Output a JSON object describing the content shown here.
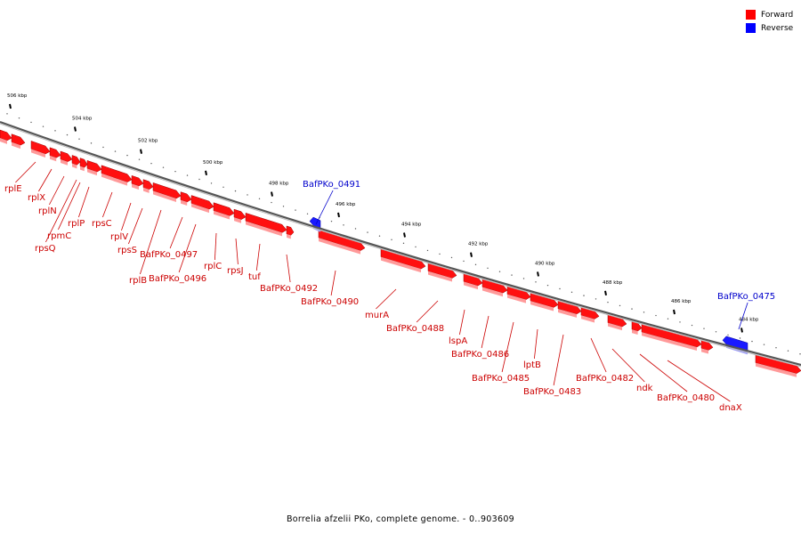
{
  "legend": {
    "forward_label": "Forward",
    "reverse_label": "Reverse",
    "forward_color": "#ff0000",
    "reverse_color": "#0000ff"
  },
  "caption": "Borrelia afzelii PKo, complete genome. - 0..903609",
  "label_colors": {
    "forward": "#cc0000",
    "reverse": "#0000cc"
  },
  "ticks": [
    "506 kbp",
    "504 kbp",
    "502 kbp",
    "500 kbp",
    "498 kbp",
    "496 kbp",
    "494 kbp",
    "492 kbp",
    "490 kbp",
    "488 kbp",
    "486 kbp",
    "484 kbp"
  ],
  "genes": [
    {
      "label": "rplE",
      "strand": "forward"
    },
    {
      "label": "rplX",
      "strand": "forward"
    },
    {
      "label": "rplN",
      "strand": "forward"
    },
    {
      "label": "rpmC",
      "strand": "forward"
    },
    {
      "label": "rpsQ",
      "strand": "forward"
    },
    {
      "label": "rplP",
      "strand": "forward"
    },
    {
      "label": "rpsC",
      "strand": "forward"
    },
    {
      "label": "rplV",
      "strand": "forward"
    },
    {
      "label": "rpsS",
      "strand": "forward"
    },
    {
      "label": "rplB",
      "strand": "forward"
    },
    {
      "label": "BafPKo_0497",
      "strand": "forward"
    },
    {
      "label": "BafPKo_0496",
      "strand": "forward"
    },
    {
      "label": "rplC",
      "strand": "forward"
    },
    {
      "label": "rpsJ",
      "strand": "forward"
    },
    {
      "label": "tuf",
      "strand": "forward"
    },
    {
      "label": "BafPKo_0492",
      "strand": "forward"
    },
    {
      "label": "BafPKo_0491",
      "strand": "reverse"
    },
    {
      "label": "BafPKo_0490",
      "strand": "forward"
    },
    {
      "label": "murA",
      "strand": "forward"
    },
    {
      "label": "BafPKo_0488",
      "strand": "forward"
    },
    {
      "label": "lspA",
      "strand": "forward"
    },
    {
      "label": "BafPKo_0486",
      "strand": "forward"
    },
    {
      "label": "BafPKo_0485",
      "strand": "forward"
    },
    {
      "label": "lptB",
      "strand": "forward"
    },
    {
      "label": "BafPKo_0483",
      "strand": "forward"
    },
    {
      "label": "BafPKo_0482",
      "strand": "forward"
    },
    {
      "label": "ndk",
      "strand": "forward"
    },
    {
      "label": "BafPKo_0480",
      "strand": "forward"
    },
    {
      "label": "dnaX",
      "strand": "forward"
    },
    {
      "label": "BafPKo_0475",
      "strand": "reverse"
    }
  ]
}
